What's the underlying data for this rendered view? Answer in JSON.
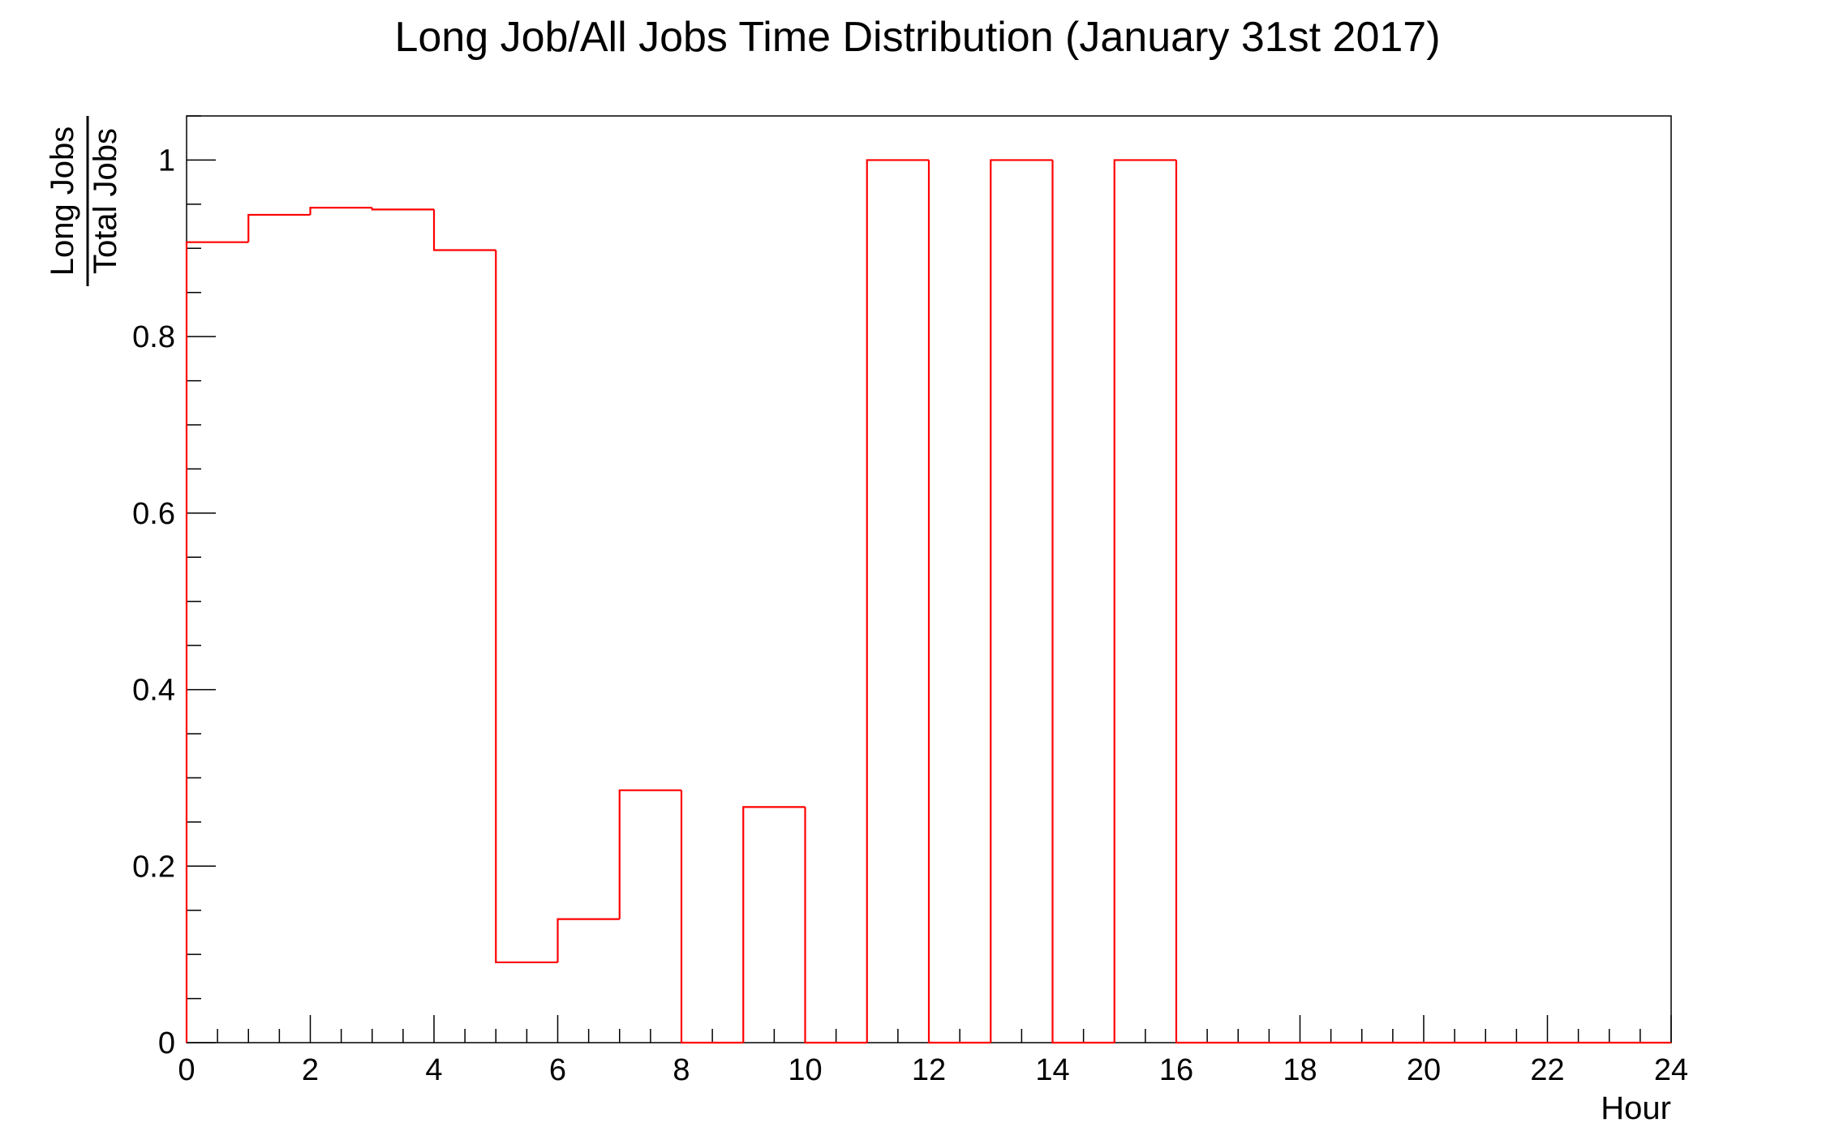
{
  "chart_data": {
    "type": "bar",
    "style": "step-histogram",
    "title": "Long Job/All Jobs Time Distribution (January 31st 2017)",
    "xlabel": "Hour",
    "ylabel_numerator": "Long Jobs",
    "ylabel_denominator": "Total Jobs",
    "xlim": [
      0,
      24
    ],
    "ylim": [
      0,
      1.05
    ],
    "x_ticks": [
      "0",
      "2",
      "4",
      "6",
      "8",
      "10",
      "12",
      "14",
      "16",
      "18",
      "20",
      "22",
      "24"
    ],
    "y_ticks": [
      "0",
      "0.2",
      "0.4",
      "0.6",
      "0.8",
      "1"
    ],
    "grid": false,
    "line_color": "#ff0000",
    "bin_width": 1,
    "categories": [
      "0",
      "1",
      "2",
      "3",
      "4",
      "5",
      "6",
      "7",
      "8",
      "9",
      "10",
      "11",
      "12",
      "13",
      "14",
      "15",
      "16",
      "17",
      "18",
      "19",
      "20",
      "21",
      "22",
      "23"
    ],
    "values": [
      0.907,
      0.938,
      0.946,
      0.944,
      0.898,
      0.091,
      0.14,
      0.286,
      0,
      0.267,
      0,
      1,
      0,
      1,
      0,
      1,
      0,
      0,
      0,
      0,
      0,
      0,
      0,
      0
    ]
  }
}
